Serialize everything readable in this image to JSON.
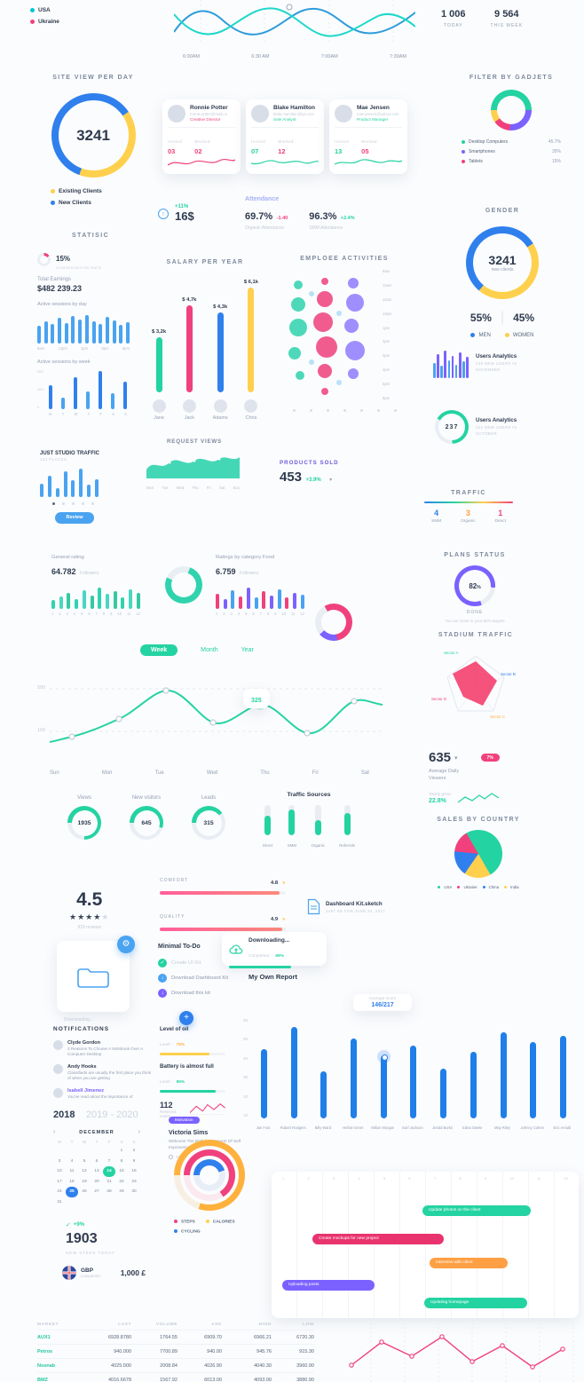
{
  "palette": {
    "teal": "#24d3a2",
    "blue": "#2f80ed",
    "lightBlue": "#4aa3f0",
    "pink": "#f0417c",
    "yellow": "#ffd04d",
    "orange": "#ff9f43",
    "purple": "#7b61ff"
  },
  "waveChart": {
    "legend": [
      {
        "label": "USA"
      },
      {
        "label": "Ukraine"
      }
    ],
    "xLabels": [
      "6:00AM",
      "6:30 AM",
      "7:00AM",
      "7:30AM"
    ],
    "stats": [
      {
        "value": "1 006",
        "label": "TODAY"
      },
      {
        "value": "9 564",
        "label": "THIS WEEK"
      }
    ]
  },
  "siteView": {
    "title": "SITE VIEW PER DAY",
    "value": "3241",
    "legend": [
      {
        "label": "Existing Clients"
      },
      {
        "label": "New Clients"
      }
    ]
  },
  "userCards": [
    {
      "name": "Ronnie Potter",
      "email": "ronnie.potter@mail.co",
      "role": "Creative Director",
      "invitedLabel": "Invited",
      "invited": "03",
      "workedLabel": "Worked",
      "worked": "02"
    },
    {
      "name": "Blake Hamilton",
      "email": "blake.hamilton@ya.com",
      "role": "Sale Analyst",
      "invitedLabel": "Invited",
      "invited": "07",
      "workedLabel": "Worked",
      "worked": "12"
    },
    {
      "name": "Mae Jensen",
      "email": "mae.jensen@yahoo.com",
      "role": "Product Manager",
      "invitedLabel": "Invited",
      "invited": "13",
      "workedLabel": "Worked",
      "worked": "05"
    }
  ],
  "gadjets": {
    "title": "FILTER BY GADJETS",
    "items": [
      {
        "label": "Desktop Computers",
        "value": "45.7%"
      },
      {
        "label": "Smartphones",
        "value": "35%"
      },
      {
        "label": "Tablets",
        "value": "15%"
      }
    ]
  },
  "earnings": {
    "badge": "+11%",
    "value": "16$"
  },
  "attendance": {
    "title": "Attendance",
    "items": [
      {
        "value": "69.7%",
        "delta": "-1.40",
        "label": "Organic Attendance"
      },
      {
        "value": "96.3%",
        "delta": "+2.4%",
        "label": "SMM Attendance"
      }
    ]
  },
  "gender": {
    "title": "GENDER",
    "value": "3241",
    "sub": "new clients",
    "leftPct": "55%",
    "leftLabel": "MEN",
    "rightPct": "45%",
    "rightLabel": "WOMEN"
  },
  "statistic": {
    "title": "STATISIC",
    "rate": "15%",
    "rateLabel": "CONVERSATION RATE",
    "earningsLabel": "Total Earnings",
    "earnings": "$482 239.23",
    "dayLabel": "Active sessions by day",
    "dayValues": [
      55,
      70,
      60,
      80,
      65,
      85,
      75,
      90,
      70,
      62,
      82,
      72,
      58,
      66
    ],
    "dayTicks": [
      "9am",
      "12pm",
      "3pm",
      "6pm",
      "9pm"
    ],
    "weekLabel": "Active sessions by week",
    "weekYTicks": [
      "200",
      "100",
      "0"
    ],
    "weekValues": [
      120,
      60,
      160,
      90,
      190,
      80,
      140
    ],
    "weekTicks": [
      "M",
      "T",
      "W",
      "T",
      "F",
      "S",
      "S"
    ]
  },
  "salary": {
    "title": "SALARY PER YEAR",
    "bars": [
      {
        "name": "Jane",
        "value": "$ 3,2k"
      },
      {
        "name": "Jack",
        "value": "$ 4,7k"
      },
      {
        "name": "Adams",
        "value": "$ 4,3k"
      },
      {
        "name": "Chris",
        "value": "$ 6,1k"
      }
    ]
  },
  "activities": {
    "title": "EMPLOEE ACTIVITIES",
    "times": [
      "9am",
      "10am",
      "11am",
      "12pm",
      "1pm",
      "2pm",
      "3pm",
      "4pm",
      "5pm",
      "6pm"
    ]
  },
  "usersAnalyticsBars": {
    "values": [
      50,
      80,
      40,
      90,
      60,
      75,
      45,
      85,
      55,
      70
    ],
    "title": "Users Analytics",
    "sub": "245 NEW USERS IN NOVEMBER"
  },
  "usersAnalyticsDonut": {
    "value": "237",
    "title": "Users Analytics",
    "sub": "321 NEW USERS IN OCTOBER"
  },
  "requestViews": {
    "title": "REQUEST VIEWS",
    "days": [
      "Mon",
      "Tue",
      "Wed",
      "Thu",
      "Fri",
      "Sat",
      "Sun"
    ]
  },
  "justStudio": {
    "title": "JUST STUDIO TRAFFIC",
    "sub": "134 PLACES",
    "values": [
      45,
      70,
      30,
      85,
      55,
      95,
      40,
      60
    ],
    "button": "Review"
  },
  "productsSold": {
    "title": "PRODUCTS SOLD",
    "value": "453",
    "delta": "+3.9%"
  },
  "traffic": {
    "title": "TRAFFIC",
    "items": [
      {
        "value": "4",
        "label": "SMM"
      },
      {
        "value": "3",
        "label": "Organic"
      },
      {
        "value": "1",
        "label": "Direct"
      }
    ]
  },
  "generalRating": {
    "label": "General rating",
    "value": "64.782",
    "sub": "Followers",
    "values": [
      35,
      50,
      65,
      40,
      75,
      55,
      85,
      60,
      70,
      45,
      80,
      65
    ],
    "ticks": [
      "1",
      "2",
      "3",
      "4",
      "5",
      "6",
      "7",
      "8",
      "9",
      "10",
      "11",
      "12"
    ]
  },
  "categoryRating": {
    "label": "Ratings by category Food",
    "value": "6.759",
    "sub": "Followers",
    "values": [
      60,
      40,
      75,
      50,
      85,
      45,
      70,
      55,
      80,
      48,
      66,
      58
    ],
    "ticks": [
      "1",
      "2",
      "3",
      "4",
      "5",
      "6",
      "7",
      "8",
      "9",
      "10",
      "11",
      "12"
    ]
  },
  "plansStatus": {
    "title": "PLANS STATUS",
    "value": "82",
    "unit": "%",
    "done": "DONE",
    "note": "You are close to your 82% targets"
  },
  "weeklyChart": {
    "tabs": [
      "Week",
      "Month",
      "Year"
    ],
    "yTicks": [
      "500",
      "100"
    ],
    "tooltip": "325",
    "days": [
      "Sun",
      "Mon",
      "Tue",
      "Wed",
      "Thu",
      "Fri",
      "Sat"
    ]
  },
  "stadium": {
    "title": "STADIUM TRAFFIC",
    "sectors": [
      {
        "label": "Sector A"
      },
      {
        "label": "Sector B"
      },
      {
        "label": "Sector C"
      },
      {
        "label": "Sector D"
      }
    ]
  },
  "avgViewers": {
    "value": "635",
    "badge": "7%",
    "label": "Average Daily Viewers",
    "growLabel": "Yearly grow",
    "grow": "22.8%"
  },
  "kpis": [
    {
      "title": "Views",
      "value": "1935"
    },
    {
      "title": "New visitors",
      "value": "645"
    },
    {
      "title": "Leads",
      "value": "315"
    }
  ],
  "trafficSources": {
    "title": "Traffic Sources",
    "items": [
      {
        "label": "Direct"
      },
      {
        "label": "SMM"
      },
      {
        "label": "Organic"
      },
      {
        "label": "Referrals"
      }
    ]
  },
  "salesByCountry": {
    "title": "SALES BY COUNTRY",
    "legend": [
      {
        "label": "USA"
      },
      {
        "label": "Ukraine"
      },
      {
        "label": "China"
      },
      {
        "label": "India"
      }
    ]
  },
  "rating": {
    "value": "4.5",
    "reviews": "929 reviews"
  },
  "qualityBars": [
    {
      "label": "COMFORT",
      "value": "4.8"
    },
    {
      "label": "QUALITY",
      "value": "4.9"
    }
  ],
  "file": {
    "name": "Dashboard Kit.sketch",
    "meta": "1457 KB FOR JUNE 24, 2017"
  },
  "folderCard": {
    "caption": "Downloading..."
  },
  "todo": {
    "title": "Minimal To-Do",
    "items": [
      {
        "label": "Create UI Kit"
      },
      {
        "label": "Download Dashboard Kit"
      },
      {
        "label": "Download this kit"
      }
    ]
  },
  "downloading": {
    "title": "Downloading...",
    "completedLabel": "Completed :",
    "pct": "69%"
  },
  "report": {
    "title": "My Own Report",
    "tooltipLabel": "Avarage score",
    "tooltipValue": "146/217",
    "yTicks": [
      "60",
      "50",
      "40",
      "30",
      "20",
      "10"
    ],
    "values": [
      42,
      55,
      28,
      48,
      38,
      44,
      30,
      40,
      52,
      46,
      50
    ],
    "names": [
      "Jan Fost",
      "Robert Rodgers",
      "Billy Ward",
      "Herbie Greer",
      "Milton Morgan",
      "Earl Jackson",
      "Jerald Burks",
      "Edna Steele",
      "May Riley",
      "Johnny Cohen",
      "Eric Arnold"
    ]
  },
  "notifications": {
    "title": "NOTIFICATIONS",
    "items": [
      {
        "name": "Clyde Gordon",
        "text": "3 Reasons To Choose A Notebook Over A Computer Desktop"
      },
      {
        "name": "Andy Hooks",
        "text": "Classifieds are usually the first place you think of when you are getting"
      },
      {
        "name": "Isabell Jimenez",
        "text": "You've read about the importance of"
      }
    ]
  },
  "levels": {
    "oilTitle": "Level of oil",
    "oilLabel": "Level :",
    "oilPct": "75%",
    "batteryTitle": "Battery is almost full",
    "batteryLabel": "Level :",
    "batteryPct": "85%",
    "routesValue": "112",
    "routesLabel": "Reserved routes"
  },
  "calendar": {
    "year": "2018",
    "otherYears": "2019 - 2020",
    "month": "DECEMBER",
    "prev": "‹",
    "next": "›",
    "dayNames": [
      "M",
      "T",
      "W",
      "T",
      "F",
      "S",
      "S"
    ],
    "cells": [
      {
        "t": ""
      },
      {
        "t": ""
      },
      {
        "t": ""
      },
      {
        "t": ""
      },
      {
        "t": ""
      },
      {
        "t": "1"
      },
      {
        "t": "2"
      },
      {
        "t": "3"
      },
      {
        "t": "4"
      },
      {
        "t": "5"
      },
      {
        "t": "6"
      },
      {
        "t": "7"
      },
      {
        "t": "8"
      },
      {
        "t": "9"
      },
      {
        "t": "10"
      },
      {
        "t": "11"
      },
      {
        "t": "12"
      },
      {
        "t": "13"
      },
      {
        "t": "14",
        "cls": "sel-green"
      },
      {
        "t": "15"
      },
      {
        "t": "16"
      },
      {
        "t": "17"
      },
      {
        "t": "18"
      },
      {
        "t": "19"
      },
      {
        "t": "20"
      },
      {
        "t": "21"
      },
      {
        "t": "22"
      },
      {
        "t": "23"
      },
      {
        "t": "24"
      },
      {
        "t": "25",
        "cls": "sel-blue"
      },
      {
        "t": "26"
      },
      {
        "t": "27"
      },
      {
        "t": "28"
      },
      {
        "t": "29"
      },
      {
        "t": "30"
      },
      {
        "t": "31"
      },
      {
        "t": ""
      },
      {
        "t": ""
      },
      {
        "t": ""
      },
      {
        "t": ""
      },
      {
        "t": ""
      },
      {
        "t": ""
      }
    ]
  },
  "motivation": {
    "badge": "Motivation",
    "name": "Victoria Sims",
    "text": "Welcome The Birthday Moment Of Self Improvement!",
    "date": "11 July"
  },
  "rings": {
    "legend": [
      {
        "label": "STEPS"
      },
      {
        "label": "CALORIES"
      },
      {
        "label": "CYCLING"
      }
    ]
  },
  "steps": {
    "delta": "+9%",
    "value": "1903",
    "label": "NEW STEPS TODAY"
  },
  "gbp": {
    "code": "GBP",
    "label": "comparsion",
    "value": "1,000 £"
  },
  "gantt": {
    "ticks": [
      "1",
      "2",
      "3",
      "4",
      "5",
      "6",
      "7",
      "8",
      "9",
      "10",
      "11",
      "12"
    ],
    "tasks": [
      {
        "label": "Update photos on the client"
      },
      {
        "label": "Create mockups for new project"
      },
      {
        "label": "Interview with client"
      },
      {
        "label": "Uploading posts"
      },
      {
        "label": "Updating homepage"
      }
    ]
  },
  "market": {
    "headers": [
      "MARKET",
      "LAST",
      "VOLUME",
      "ASK",
      "HIGH",
      "LOW"
    ],
    "rows": [
      [
        "AUX1",
        "6928.8780",
        "1764.55",
        "6909.70",
        "6966.21",
        "6720.30"
      ],
      [
        "Petros",
        "940.000",
        "7700.89",
        "940.00",
        "945.76",
        "915.30"
      ],
      [
        "Nosnab",
        "4025.000",
        "2008.84",
        "4026.90",
        "4040.30",
        "3960.90"
      ],
      [
        "BMZ",
        "4016.6678",
        "1567.92",
        "6013.00",
        "4093.00",
        "3880.90"
      ]
    ]
  }
}
